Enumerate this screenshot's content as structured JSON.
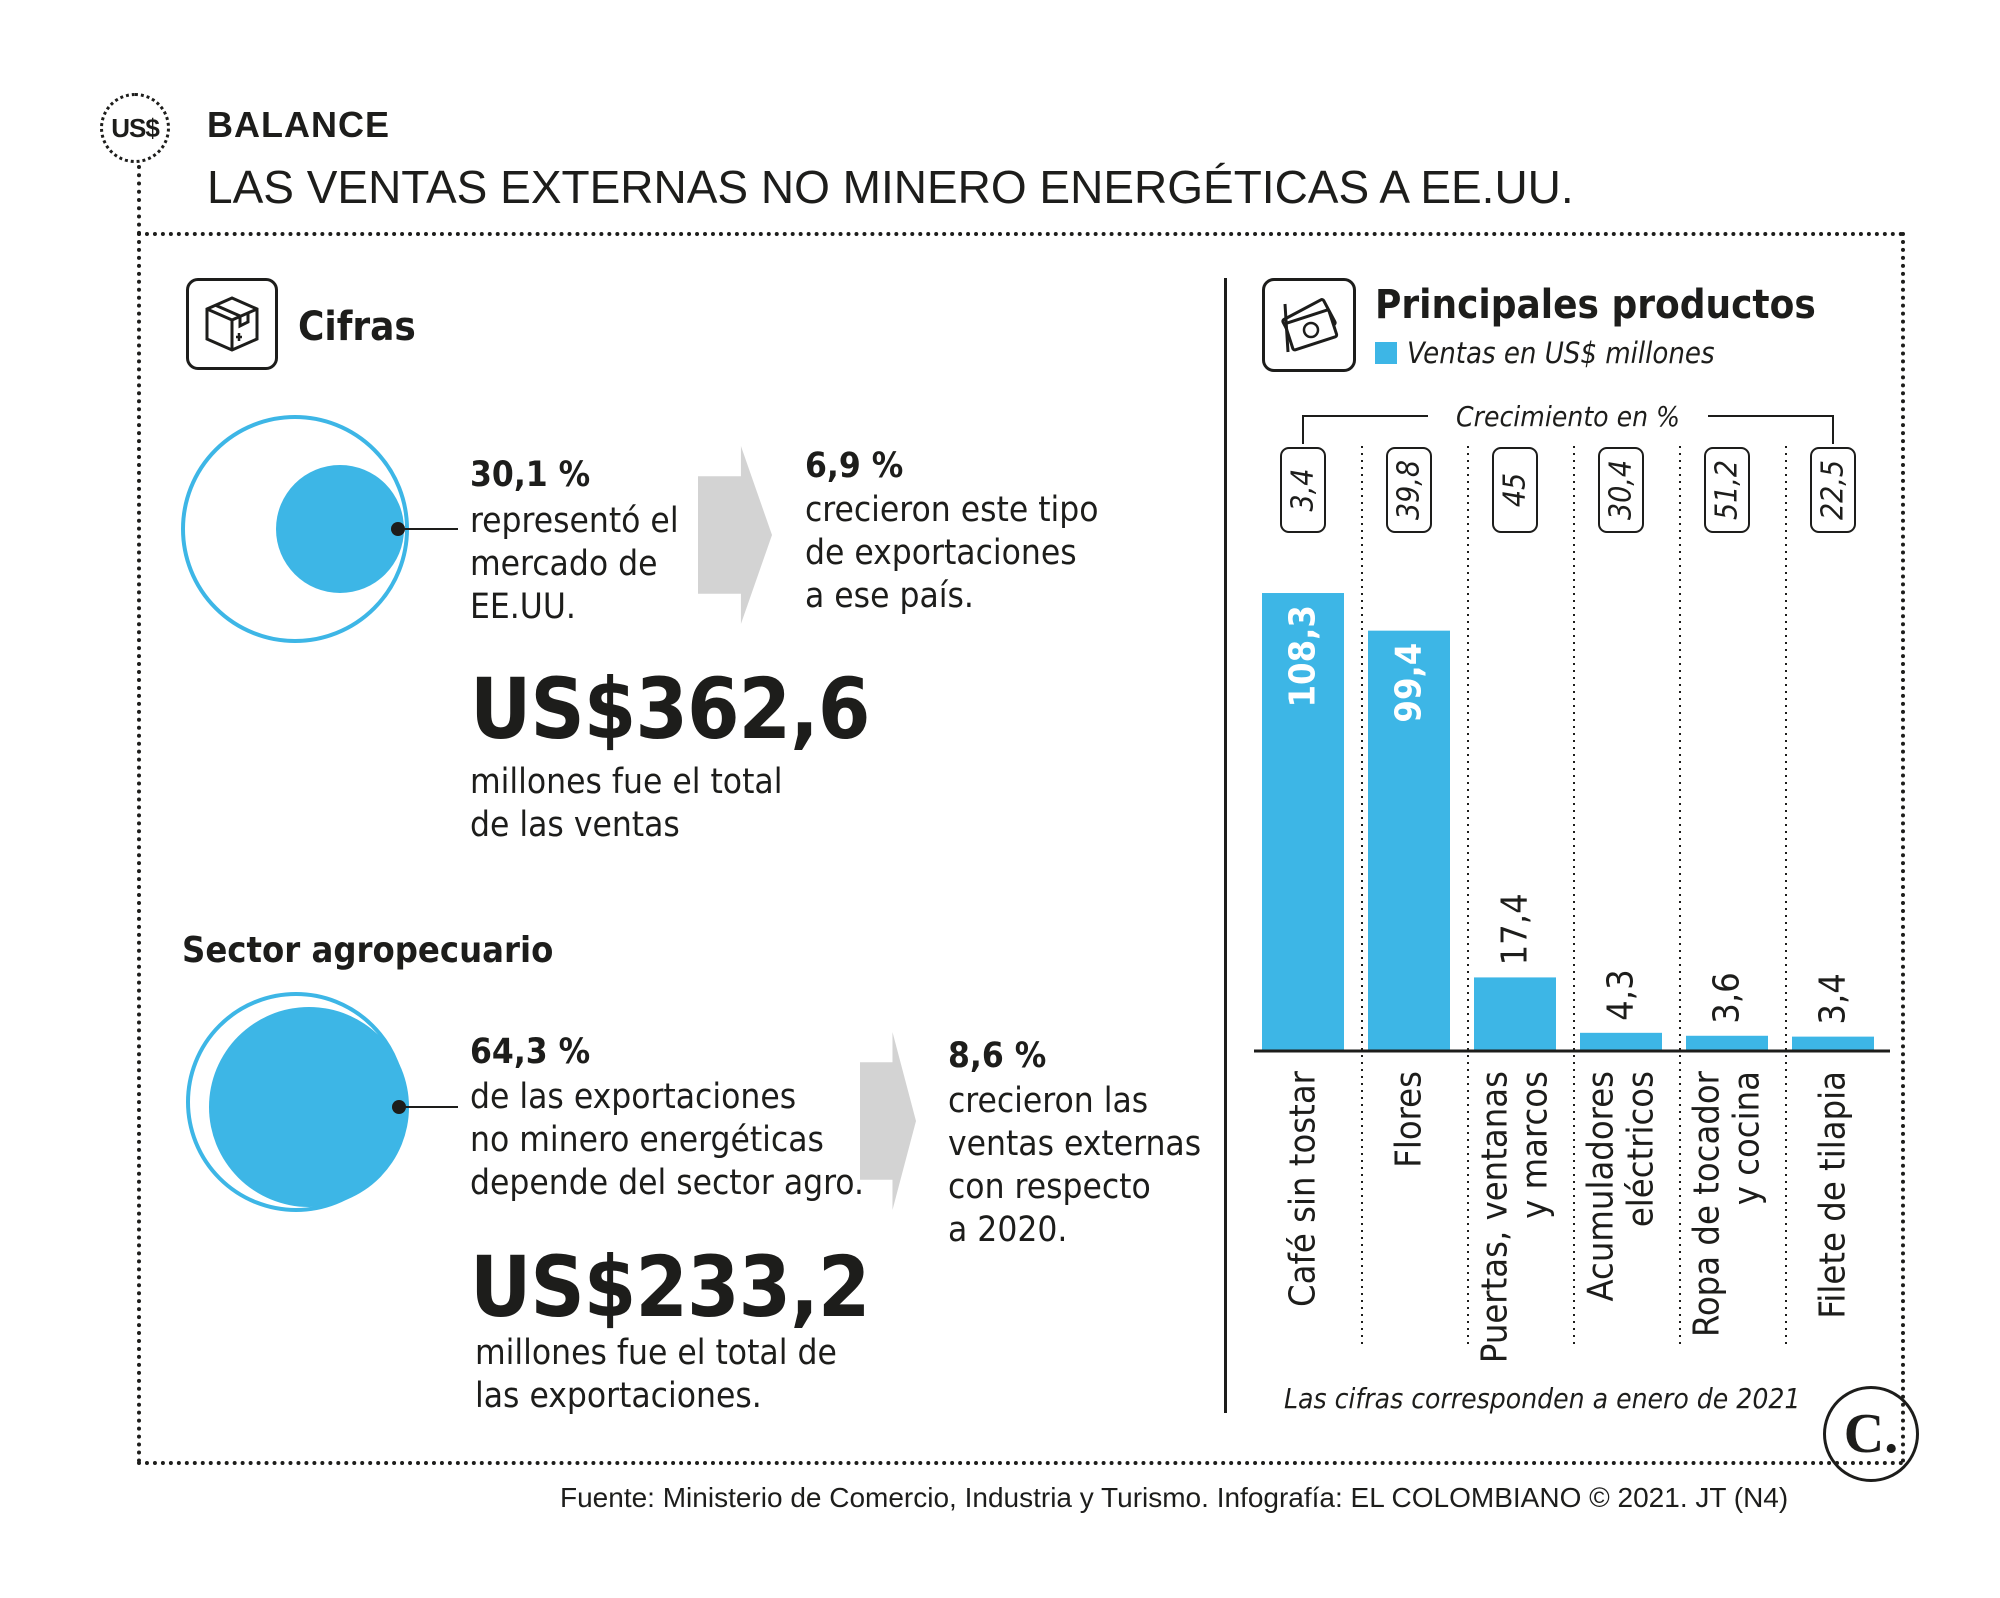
{
  "header": {
    "badge": "US$",
    "kicker": "BALANCE",
    "headline": "LAS VENTAS EXTERNAS NO MINERO ENERGÉTICAS A EE.UU."
  },
  "cifras": {
    "title": "Cifras",
    "share_pct": "30,1 %",
    "share_lines": [
      "representó el",
      "mercado de",
      "EE.UU."
    ],
    "growth_pct": "6,9 %",
    "growth_lines": [
      "crecieron este tipo",
      "de exportaciones",
      "a ese país."
    ],
    "total_value": "US$362,6",
    "total_lines": [
      "millones fue el total",
      "de las ventas"
    ]
  },
  "agro": {
    "title": "Sector agropecuario",
    "share_pct": "64,3 %",
    "share_lines": [
      "de las exportaciones",
      "no minero energéticas",
      "depende del sector agro."
    ],
    "growth_pct": "8,6 %",
    "growth_lines": [
      "crecieron las",
      "ventas externas",
      "con respecto",
      "a 2020."
    ],
    "total_value": "US$233,2",
    "total_lines": [
      "millones fue el total de",
      "las exportaciones."
    ]
  },
  "colors": {
    "accent": "#3db6e6",
    "arrow": "#d3d3d3",
    "ink": "#1d1d1b"
  },
  "chart_data": {
    "type": "bar",
    "title": "Principales productos",
    "legend": "Ventas en US$ millones",
    "growth_label": "Crecimiento en %",
    "categories": [
      "Café sin tostar",
      "Flores",
      "Puertas, ventanas\ny marcos",
      "Acumuladores\neléctricos",
      "Ropa de tocador\ny cocina",
      "Filete de tilapia"
    ],
    "values": [
      108.3,
      99.4,
      17.4,
      4.3,
      3.6,
      3.4
    ],
    "value_labels": [
      "108,3",
      "99,4",
      "17,4",
      "4,3",
      "3,6",
      "3,4"
    ],
    "growth_pct": [
      "3,4",
      "39,8",
      "45",
      "30,4",
      "51,2",
      "22,5"
    ],
    "ylim": [
      0,
      118
    ],
    "note": "Las cifras corresponden a enero de 2021"
  },
  "footer": {
    "source": "Fuente: Ministerio de Comercio, Industria y Turismo. Infografía: EL COLOMBIANO © 2021. JT (N4)",
    "logo": "C."
  }
}
